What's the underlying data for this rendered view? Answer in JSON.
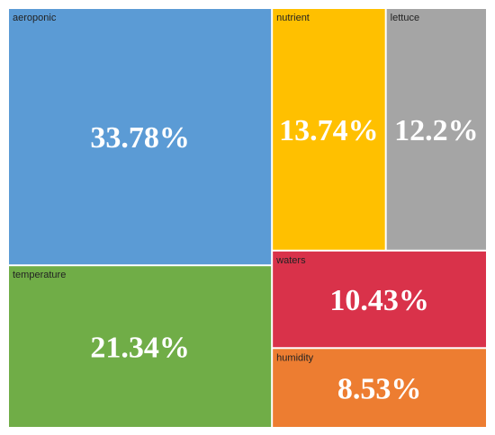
{
  "chart_data": {
    "type": "treemap",
    "items": [
      {
        "name": "aeroponic",
        "value": 33.78,
        "value_label": "33.78%",
        "color": "#5b9bd5"
      },
      {
        "name": "temperature",
        "value": 21.34,
        "value_label": "21.34%",
        "color": "#70ad47"
      },
      {
        "name": "nutrient",
        "value": 13.74,
        "value_label": "13.74%",
        "color": "#ffc000"
      },
      {
        "name": "lettuce",
        "value": 12.2,
        "value_label": "12.2%",
        "color": "#a5a5a5"
      },
      {
        "name": "waters",
        "value": 10.43,
        "value_label": "10.43%",
        "color": "#d9324a"
      },
      {
        "name": "humidity",
        "value": 8.53,
        "value_label": "8.53%",
        "color": "#ed7d31"
      }
    ]
  }
}
